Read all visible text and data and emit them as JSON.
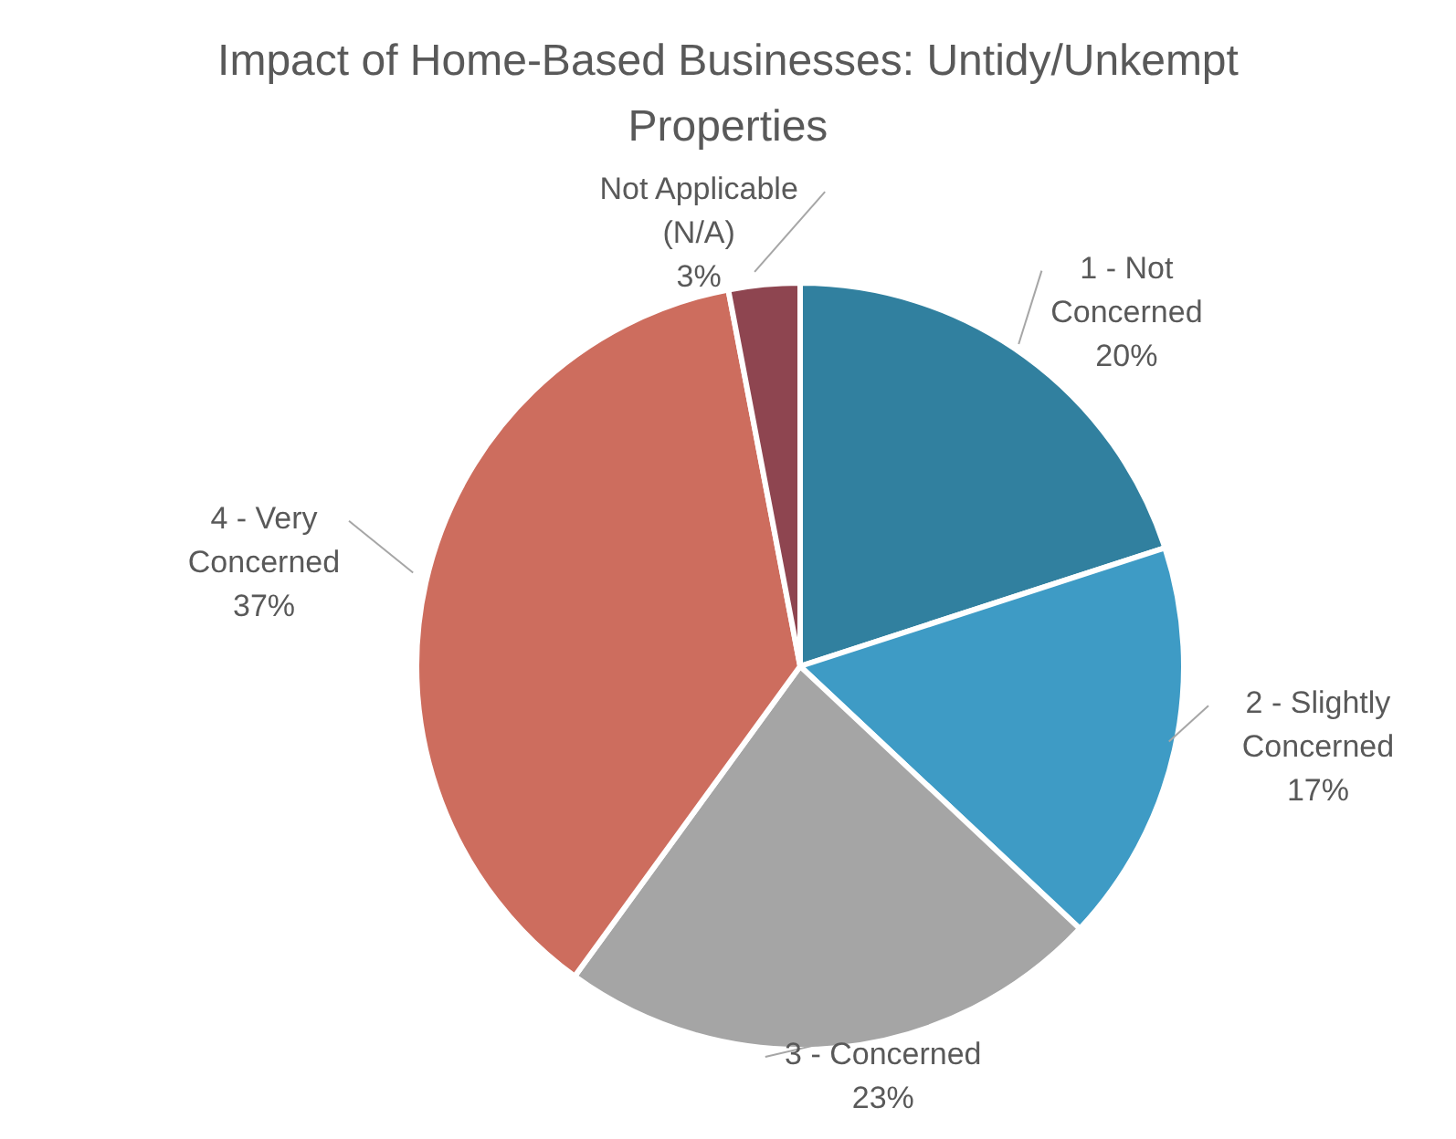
{
  "chart_data": {
    "type": "pie",
    "title": "Impact of Home-Based Businesses: Untidy/Unkempt Properties",
    "categories": [
      "1 - Not Concerned",
      "2 - Slightly Concerned",
      "3 - Concerned",
      "4 - Very Concerned",
      "Not Applicable (N/A)"
    ],
    "values": [
      20,
      17,
      23,
      37,
      3
    ],
    "value_labels": [
      "20%",
      "17%",
      "23%",
      "37%",
      "3%"
    ],
    "colors": [
      "#31809f",
      "#3e9bc5",
      "#a5a5a5",
      "#cd6d5e",
      "#8e4550"
    ],
    "legend": false
  }
}
